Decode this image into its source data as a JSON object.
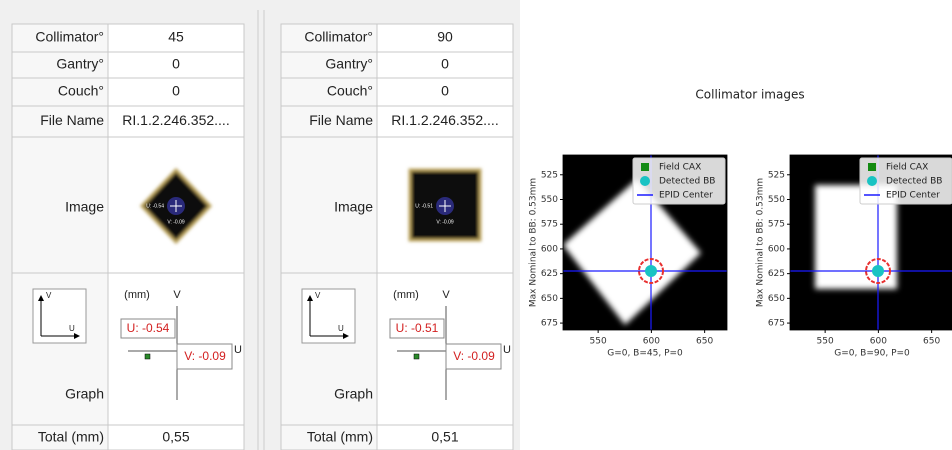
{
  "tables": [
    {
      "rows": [
        [
          "Collimator°",
          "45"
        ],
        [
          "Gantry°",
          "0"
        ],
        [
          "Couch°",
          "0"
        ],
        [
          "File Name",
          "RI.1.2.246.352...."
        ]
      ],
      "image_label": "Image",
      "image_u": "U: -0.54",
      "image_v": "V: -0.09",
      "graph_label": "Graph",
      "icon_v": "V",
      "icon_u": "U",
      "unit": "(mm)",
      "axis_v": "V",
      "axis_u": "U",
      "u_value": "U: -0.54",
      "v_value": "V: -0.09",
      "total": [
        "Total (mm)",
        "0,55"
      ]
    },
    {
      "rows": [
        [
          "Collimator°",
          "90"
        ],
        [
          "Gantry°",
          "0"
        ],
        [
          "Couch°",
          "0"
        ],
        [
          "File Name",
          "RI.1.2.246.352...."
        ]
      ],
      "image_label": "Image",
      "image_u": "U: -0.51",
      "image_v": "V: -0.09",
      "graph_label": "Graph",
      "icon_v": "V",
      "icon_u": "U",
      "unit": "(mm)",
      "axis_v": "V",
      "axis_u": "U",
      "u_value": "U: -0.51",
      "v_value": "V: -0.09",
      "total": [
        "Total (mm)",
        "0,51"
      ]
    }
  ],
  "figure": {
    "title": "Collimator images",
    "plots": [
      {
        "ylabel": "Max Nominal to BB: 0.53mm",
        "xlabel": "G=0, B=45, P=0",
        "xlim": [
          517,
          671
        ],
        "ylim": [
          505,
          682
        ],
        "y_inverted": true,
        "xticks": [
          550,
          600,
          650
        ],
        "yticks": [
          525,
          550,
          575,
          600,
          625,
          650,
          675
        ],
        "legend": [
          "Field CAX",
          "Detected BB",
          "EPID Center"
        ]
      },
      {
        "ylabel": "Max Nominal to BB: 0.53mm",
        "xlabel": "G=0, B=90, P=0",
        "xlim": [
          517,
          671
        ],
        "ylim": [
          505,
          682
        ],
        "y_inverted": true,
        "xticks": [
          550,
          600,
          650
        ],
        "yticks": [
          525,
          550,
          575,
          600,
          625,
          650,
          675
        ],
        "legend": [
          "Field CAX",
          "Detected BB",
          "EPID Center"
        ]
      }
    ]
  }
}
